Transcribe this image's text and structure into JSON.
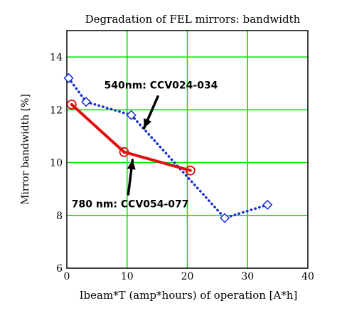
{
  "chart_data": {
    "type": "line",
    "title": "Degradation of FEL mirrors: bandwidth",
    "xlabel": "Ibeam*T (amp*hours) of operation [A*h]",
    "ylabel": "Mirror bandwidth [%]",
    "xlim": [
      0,
      40
    ],
    "ylim": [
      6,
      15
    ],
    "x_ticks": [
      0,
      10,
      20,
      30,
      40
    ],
    "y_ticks": [
      6,
      8,
      10,
      12,
      14
    ],
    "x_tick_labels": [
      "0",
      "10",
      "20",
      "30",
      "40"
    ],
    "y_tick_labels": [
      "6",
      "8",
      "10",
      "12",
      "14"
    ],
    "grid": true,
    "grid_color": "#00dd00",
    "series": [
      {
        "key": "blue",
        "color": "#1a2fd6",
        "line_style": "dotted",
        "marker": "diamond",
        "x": [
          0.3,
          3.2,
          10.7,
          26.2,
          33.3
        ],
        "y": [
          13.2,
          12.3,
          11.8,
          7.9,
          8.4
        ]
      },
      {
        "key": "red",
        "color": "#e01010",
        "line_style": "solid",
        "marker": "circle",
        "x": [
          0.8,
          9.5,
          20.5
        ],
        "y": [
          12.2,
          10.4,
          9.7
        ]
      }
    ],
    "annotations": [
      {
        "key": "blue",
        "text": "540nm: CCV024-034",
        "x": 6.2,
        "y": 12.8,
        "arrow_from": [
          15.1,
          12.5
        ],
        "arrow_to": [
          12.8,
          11.3
        ]
      },
      {
        "key": "red",
        "text": "780 nm: CCV054-077",
        "x": 0.8,
        "y": 8.3,
        "arrow_from": [
          10.2,
          8.8
        ],
        "arrow_to": [
          10.9,
          10.1
        ]
      }
    ]
  }
}
